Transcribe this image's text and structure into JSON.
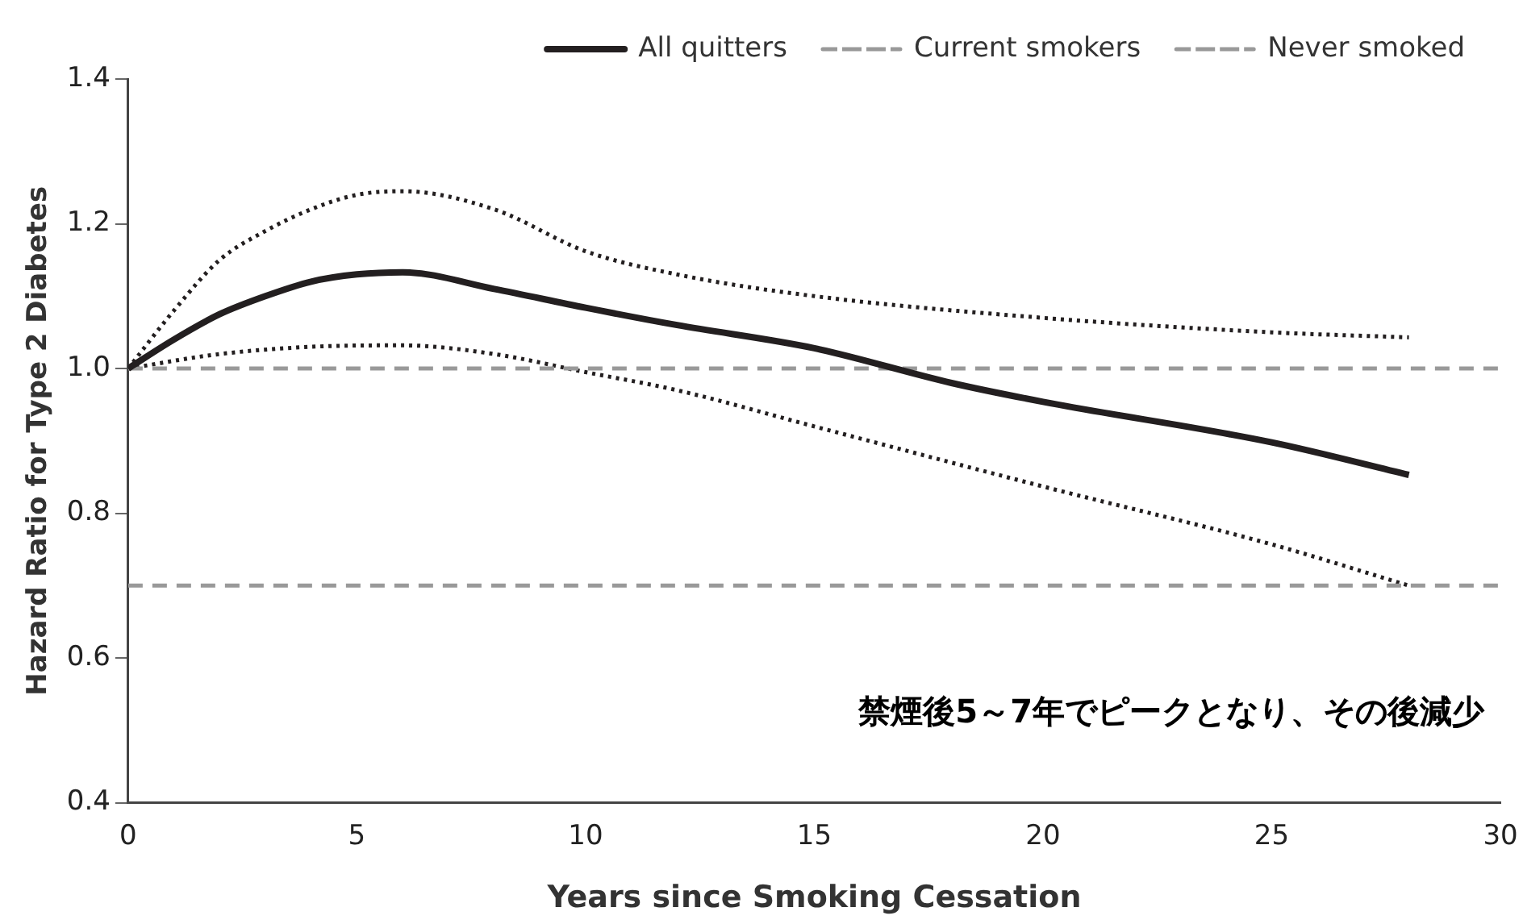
{
  "chart_data": {
    "type": "line",
    "xlabel": "Years since Smoking Cessation",
    "ylabel": "Hazard Ratio for Type 2 Diabetes",
    "xlim": [
      0,
      30
    ],
    "xticks": [
      0,
      5,
      10,
      15,
      20,
      25,
      30
    ],
    "ylim": [
      0.4,
      1.4
    ],
    "yticks": [
      0.4,
      0.6,
      0.8,
      {
        "value": 1.0,
        "label": "1.0"
      },
      1.2,
      1.4
    ],
    "grid": false,
    "legend": "top",
    "marker": "none",
    "annotations": [
      "禁煙後5～7年でピークとなり、その後減少"
    ],
    "series": [
      {
        "name": "All quitters",
        "color": "#231f20",
        "line_style": "solid",
        "x": [
          0,
          1,
          2,
          3,
          4,
          5,
          6,
          8,
          10,
          12,
          15,
          18,
          20,
          25,
          28
        ],
        "values": [
          1.0,
          1.04,
          1.075,
          1.1,
          1.12,
          1.13,
          1.133,
          1.11,
          1.084,
          1.06,
          1.028,
          0.98,
          0.954,
          0.898,
          0.853
        ]
      },
      {
        "name": "Current smokers",
        "color": "#999999",
        "line_style": "dashed",
        "x": [
          0,
          30
        ],
        "values": [
          1.0,
          1.0
        ]
      },
      {
        "name": "Never smoked",
        "color": "#999999",
        "line_style": "dashed",
        "x": [
          0,
          30
        ],
        "values": [
          0.7,
          0.7
        ]
      },
      {
        "color": "#231f20",
        "line_style": "dotted",
        "x": [
          0,
          1,
          2,
          3,
          4,
          5,
          6,
          8,
          10,
          12,
          15,
          20,
          25,
          28
        ],
        "values": [
          1.0,
          1.08,
          1.15,
          1.19,
          1.22,
          1.24,
          1.245,
          1.22,
          1.162,
          1.13,
          1.1,
          1.07,
          1.05,
          1.043
        ]
      },
      {
        "color": "#231f20",
        "line_style": "dotted",
        "x": [
          0,
          2,
          4,
          6,
          8,
          10,
          12,
          15,
          20,
          25,
          28
        ],
        "values": [
          1.0,
          1.02,
          1.03,
          1.032,
          1.02,
          0.995,
          0.97,
          0.92,
          0.837,
          0.757,
          0.7
        ]
      }
    ]
  }
}
